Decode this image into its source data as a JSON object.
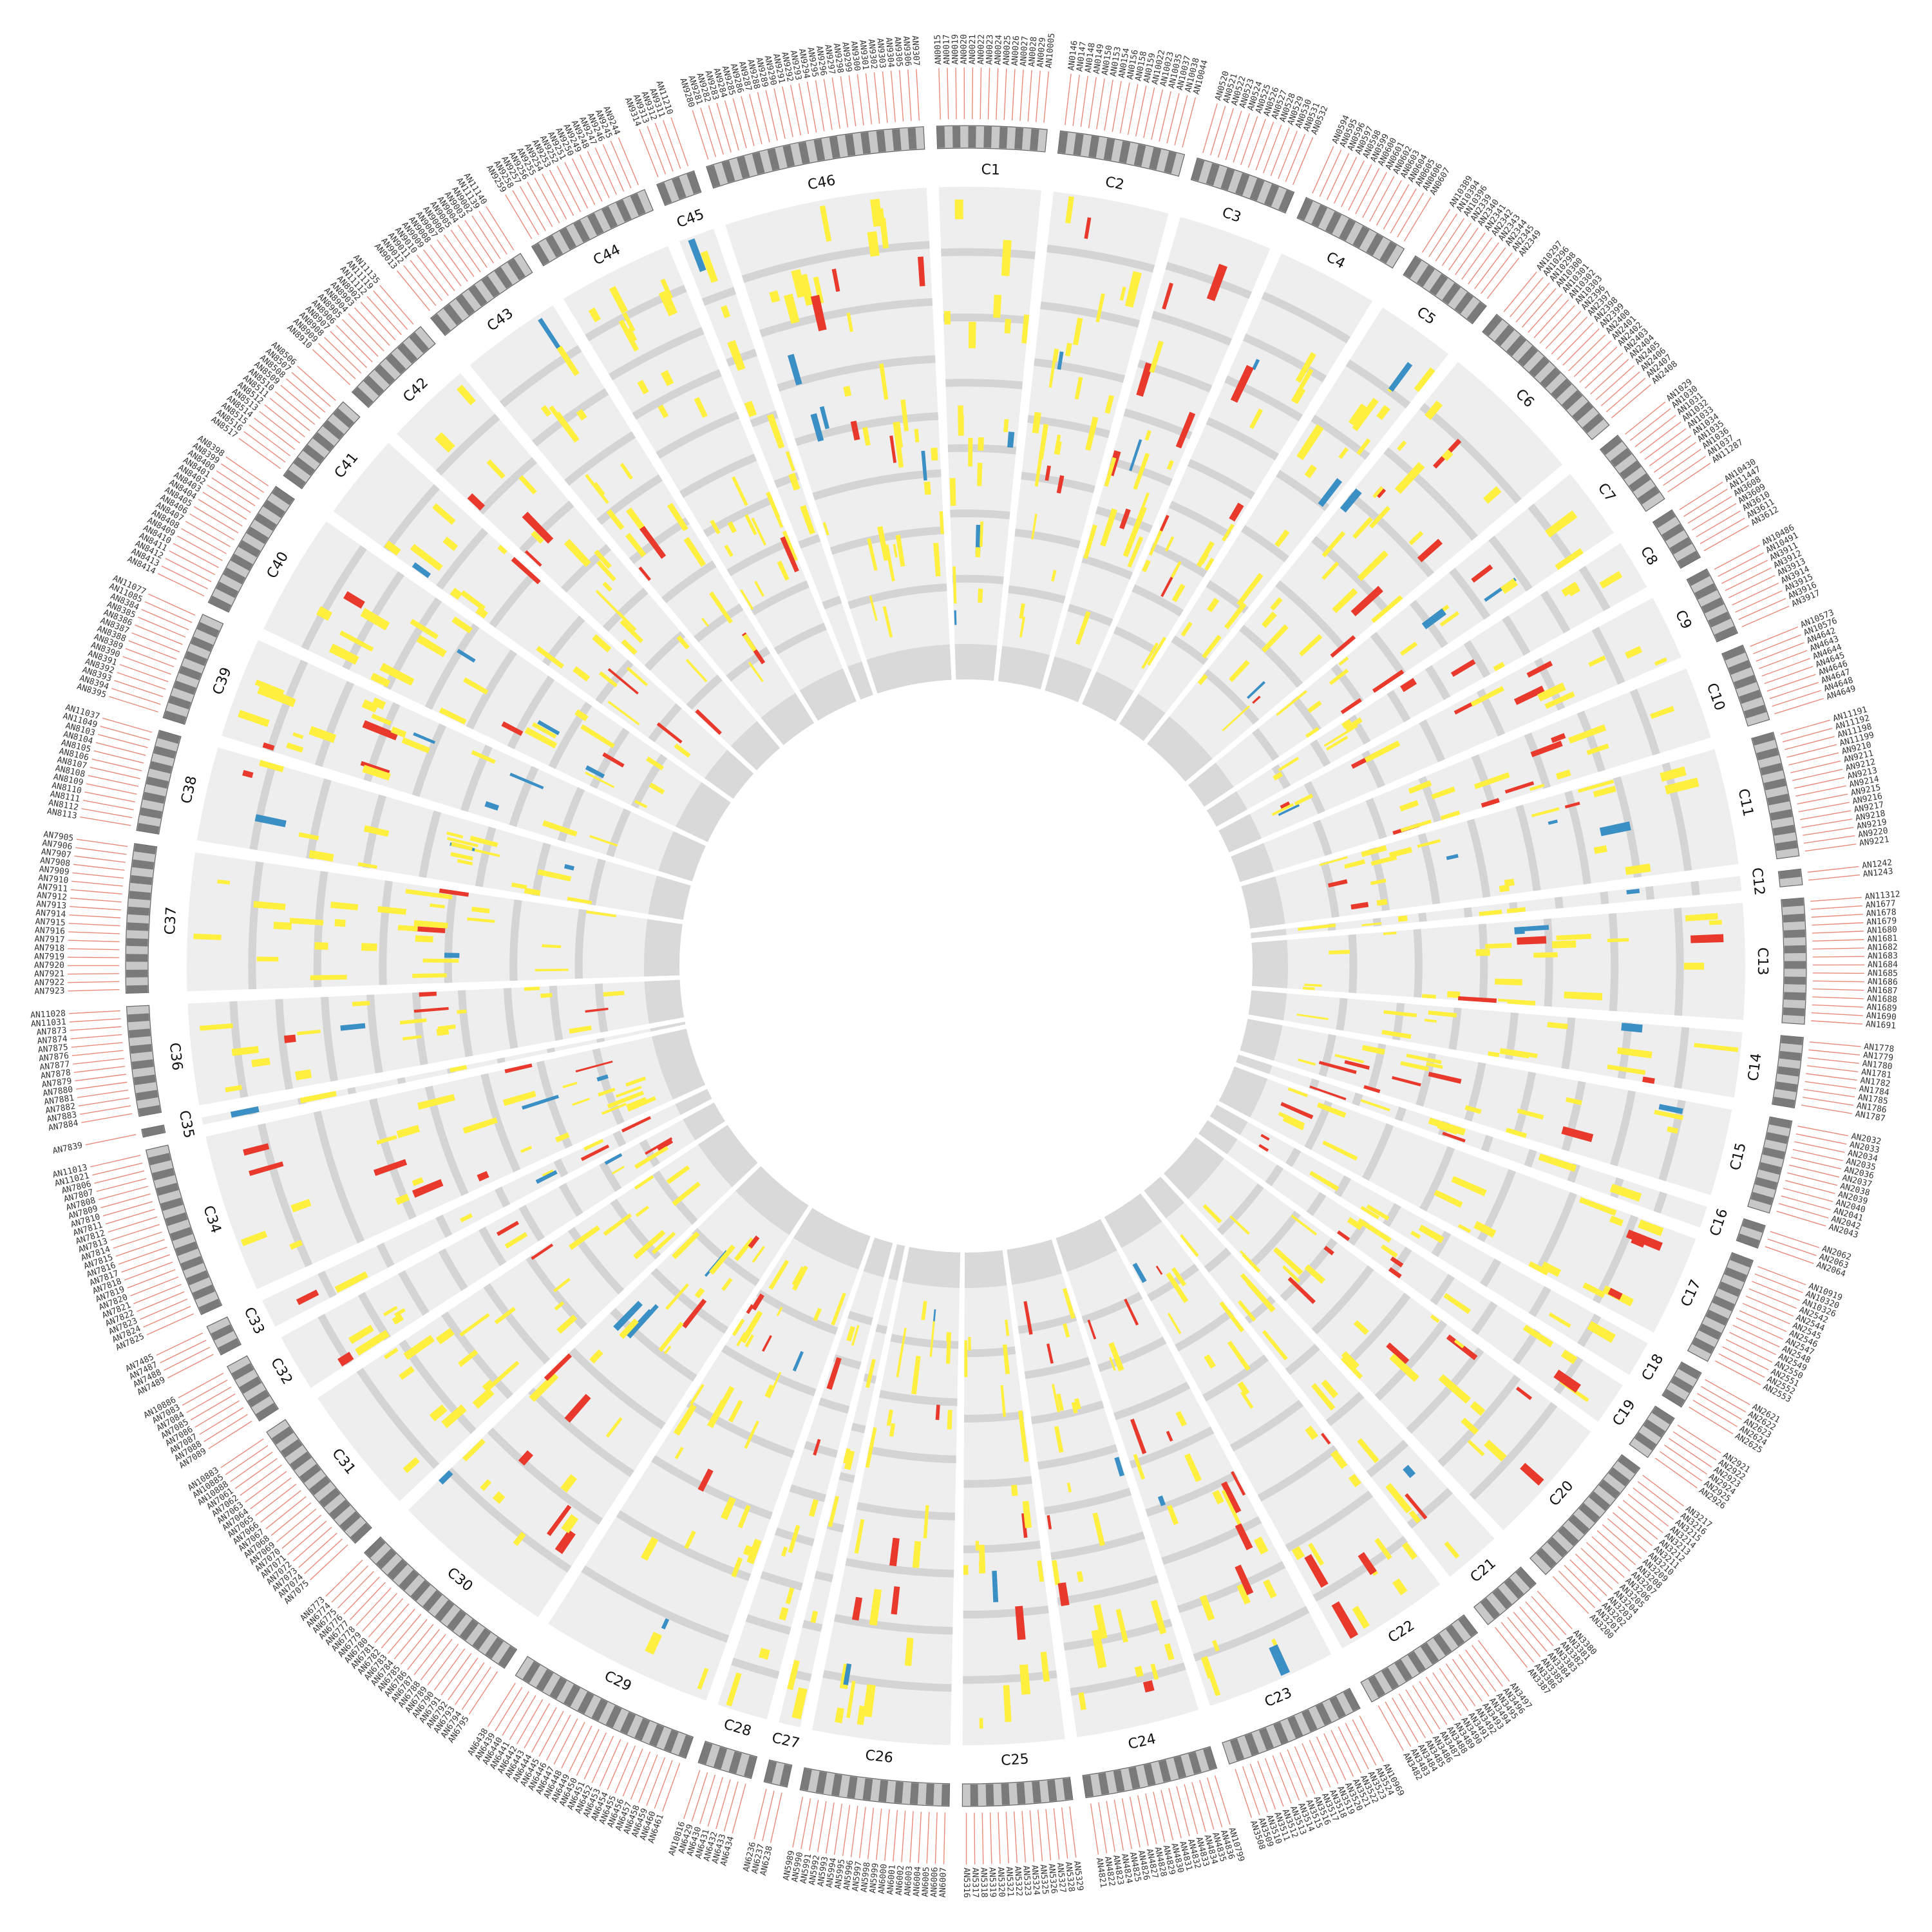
{
  "colors": {
    "background": "#ffffff",
    "sector_fill": "#eeeeee",
    "track_band": "#d4d4d4",
    "inner_block": "#d9d9d9",
    "gene_dark": "#7a7a7a",
    "gene_light": "#c8c8c8",
    "tick": "#e88a7a",
    "yellow": "#ffef3f",
    "red": "#e8392c",
    "blue": "#3a8fc4"
  },
  "clusters": [
    {
      "id": "C1",
      "genes": [
        "AN0015",
        "AN0017",
        "AN0019",
        "AN0020",
        "AN0021",
        "AN0022",
        "AN0023",
        "AN0024",
        "AN0025",
        "AN0026",
        "AN0027",
        "AN0028",
        "AN0029",
        "AN10005"
      ]
    },
    {
      "id": "C2",
      "genes": [
        "AN0146",
        "AN0147",
        "AN0148",
        "AN0149",
        "AN0150",
        "AN0153",
        "AN0154",
        "AN0156",
        "AN0158",
        "AN0159",
        "AN10022",
        "AN10023",
        "AN10035",
        "AN10037",
        "AN10038",
        "AN10044"
      ]
    },
    {
      "id": "C3",
      "genes": [
        "AN0520",
        "AN0521",
        "AN0522",
        "AN0523",
        "AN0524",
        "AN0525",
        "AN0526",
        "AN0527",
        "AN0528",
        "AN0529",
        "AN0530",
        "AN0531",
        "AN0532"
      ]
    },
    {
      "id": "C4",
      "genes": [
        "AN0594",
        "AN0595",
        "AN0596",
        "AN0597",
        "AN0598",
        "AN0599",
        "AN0600",
        "AN0601",
        "AN0602",
        "AN0603",
        "AN0604",
        "AN0605",
        "AN0606",
        "AN0607"
      ]
    },
    {
      "id": "C5",
      "genes": [
        "AN10389",
        "AN10394",
        "AN10396",
        "AN2339",
        "AN2340",
        "AN2341",
        "AN2342",
        "AN2343",
        "AN2344",
        "AN2345",
        "AN2349"
      ]
    },
    {
      "id": "C6",
      "genes": [
        "AN10297",
        "AN10296",
        "AN10298",
        "AN10300",
        "AN10301",
        "AN10302",
        "AN10303",
        "AN2396",
        "AN2397",
        "AN2398",
        "AN2399",
        "AN2400",
        "AN2401",
        "AN2402",
        "AN2403",
        "AN2404",
        "AN2405",
        "AN2406",
        "AN2407",
        "AN2408"
      ]
    },
    {
      "id": "C7",
      "genes": [
        "AN1029",
        "AN1030",
        "AN1031",
        "AN1032",
        "AN1033",
        "AN1034",
        "AN1035",
        "AN1036",
        "AN1037",
        "AN11287"
      ]
    },
    {
      "id": "C8",
      "genes": [
        "AN10430",
        "AN11447",
        "AN3608",
        "AN3609",
        "AN3610",
        "AN3611",
        "AN3612"
      ]
    },
    {
      "id": "C9",
      "genes": [
        "AN10486",
        "AN10491",
        "AN3911",
        "AN3912",
        "AN3913",
        "AN3914",
        "AN3915",
        "AN3916",
        "AN3917"
      ]
    },
    {
      "id": "C10",
      "genes": [
        "AN10573",
        "AN10576",
        "AN4642",
        "AN4643",
        "AN4644",
        "AN4645",
        "AN4646",
        "AN4647",
        "AN4648",
        "AN4649"
      ]
    },
    {
      "id": "C11",
      "genes": [
        "AN11191",
        "AN11192",
        "AN11198",
        "AN11199",
        "AN9210",
        "AN9211",
        "AN9212",
        "AN9213",
        "AN9214",
        "AN9215",
        "AN9216",
        "AN9217",
        "AN9218",
        "AN9219",
        "AN9220",
        "AN9221"
      ]
    },
    {
      "id": "C12",
      "genes": [
        "AN1242",
        "AN1243"
      ]
    },
    {
      "id": "C13",
      "genes": [
        "AN11312",
        "AN1677",
        "AN1678",
        "AN1679",
        "AN1680",
        "AN1681",
        "AN1682",
        "AN1683",
        "AN1684",
        "AN1685",
        "AN1686",
        "AN1687",
        "AN1688",
        "AN1689",
        "AN1690",
        "AN1691"
      ]
    },
    {
      "id": "C14",
      "genes": [
        "AN1778",
        "AN1779",
        "AN1780",
        "AN1781",
        "AN1782",
        "AN1784",
        "AN1785",
        "AN1786",
        "AN1787"
      ]
    },
    {
      "id": "C15",
      "genes": [
        "AN2032",
        "AN2033",
        "AN2034",
        "AN2035",
        "AN2036",
        "AN2037",
        "AN2038",
        "AN2039",
        "AN2040",
        "AN2041",
        "AN2042",
        "AN2043"
      ]
    },
    {
      "id": "C16",
      "genes": [
        "AN2062",
        "AN2063",
        "AN2064"
      ]
    },
    {
      "id": "C17",
      "genes": [
        "AN10919",
        "AN10320",
        "AN10326",
        "AN2542",
        "AN2544",
        "AN2545",
        "AN2546",
        "AN2547",
        "AN2548",
        "AN2549",
        "AN2550",
        "AN2551",
        "AN2552",
        "AN2553"
      ]
    },
    {
      "id": "C18",
      "genes": [
        "AN2621",
        "AN2622",
        "AN2623",
        "AN2624",
        "AN2625"
      ]
    },
    {
      "id": "C19",
      "genes": [
        "AN2921",
        "AN2922",
        "AN2923",
        "AN2924",
        "AN2925",
        "AN2926"
      ]
    },
    {
      "id": "C20",
      "genes": [
        "AN3217",
        "AN3216",
        "AN3215",
        "AN3214",
        "AN3213",
        "AN3212",
        "AN3211",
        "AN3210",
        "AN3209",
        "AN3208",
        "AN3207",
        "AN3206",
        "AN3205",
        "AN3204",
        "AN3203",
        "AN3202",
        "AN3201",
        "AN3200"
      ]
    },
    {
      "id": "C21",
      "genes": [
        "AN3380",
        "AN3381",
        "AN3382",
        "AN3383",
        "AN3384",
        "AN3385",
        "AN3386",
        "AN3387"
      ]
    },
    {
      "id": "C22",
      "genes": [
        "AN3497",
        "AN3496",
        "AN3495",
        "AN3494",
        "AN3493",
        "AN3492",
        "AN3491",
        "AN3490",
        "AN3489",
        "AN3488",
        "AN3487",
        "AN3486",
        "AN3485",
        "AN3484",
        "AN3483",
        "AN3482"
      ]
    },
    {
      "id": "C23",
      "genes": [
        "AN10969",
        "AN3524",
        "AN3523",
        "AN3522",
        "AN3521",
        "AN3520",
        "AN3519",
        "AN3518",
        "AN3517",
        "AN3516",
        "AN3515",
        "AN3514",
        "AN3513",
        "AN3512",
        "AN3511",
        "AN3510",
        "AN3509",
        "AN3508"
      ]
    },
    {
      "id": "C24",
      "genes": [
        "AN10799",
        "AN4836",
        "AN4835",
        "AN4834",
        "AN4833",
        "AN4832",
        "AN4831",
        "AN4830",
        "AN4829",
        "AN4828",
        "AN4827",
        "AN4826",
        "AN4825",
        "AN4824",
        "AN4823",
        "AN4822",
        "AN4821"
      ]
    },
    {
      "id": "C25",
      "genes": [
        "AN5329",
        "AN5328",
        "AN5327",
        "AN5326",
        "AN5325",
        "AN5324",
        "AN5323",
        "AN5322",
        "AN5321",
        "AN5320",
        "AN5319",
        "AN5318",
        "AN5317",
        "AN5316"
      ]
    },
    {
      "id": "C26",
      "genes": [
        "AN6007",
        "AN6006",
        "AN6005",
        "AN6004",
        "AN6003",
        "AN6002",
        "AN6001",
        "AN6000",
        "AN5999",
        "AN5998",
        "AN5997",
        "AN5996",
        "AN5995",
        "AN5994",
        "AN5993",
        "AN5992",
        "AN5991",
        "AN5990",
        "AN5989"
      ]
    },
    {
      "id": "C27",
      "genes": [
        "AN6238",
        "AN6237",
        "AN6236"
      ]
    },
    {
      "id": "C28",
      "genes": [
        "AN6434",
        "AN6433",
        "AN6432",
        "AN6431",
        "AN6430",
        "AN6429",
        "AN10816"
      ]
    },
    {
      "id": "C29",
      "genes": [
        "AN6461",
        "AN6460",
        "AN6459",
        "AN6458",
        "AN6457",
        "AN6456",
        "AN6455",
        "AN6454",
        "AN6453",
        "AN6452",
        "AN6451",
        "AN6450",
        "AN6449",
        "AN6448",
        "AN6447",
        "AN6446",
        "AN6445",
        "AN6444",
        "AN6443",
        "AN6442",
        "AN6441",
        "AN6440",
        "AN6439",
        "AN6438"
      ]
    },
    {
      "id": "C30",
      "genes": [
        "AN6795",
        "AN6794",
        "AN6793",
        "AN6792",
        "AN6791",
        "AN6790",
        "AN6789",
        "AN6788",
        "AN6787",
        "AN6786",
        "AN6785",
        "AN6784",
        "AN6783",
        "AN6782",
        "AN6781",
        "AN6780",
        "AN6779",
        "AN6778",
        "AN6777",
        "AN6776",
        "AN6775",
        "AN6774",
        "AN6773"
      ]
    },
    {
      "id": "C31",
      "genes": [
        "AN7075",
        "AN7074",
        "AN7073",
        "AN7072",
        "AN7071",
        "AN7070",
        "AN7069",
        "AN7068",
        "AN7067",
        "AN7066",
        "AN7065",
        "AN7064",
        "AN7063",
        "AN7062",
        "AN7061",
        "AN10888",
        "AN10885",
        "AN10883"
      ]
    },
    {
      "id": "C32",
      "genes": [
        "AN7089",
        "AN7088",
        "AN7087",
        "AN7086",
        "AN7085",
        "AN7084",
        "AN7083",
        "AN10886"
      ]
    },
    {
      "id": "C33",
      "genes": [
        "AN7489",
        "AN7488",
        "AN7487",
        "AN7485"
      ]
    },
    {
      "id": "C34",
      "genes": [
        "AN7825",
        "AN7824",
        "AN7823",
        "AN7822",
        "AN7821",
        "AN7820",
        "AN7819",
        "AN7818",
        "AN7817",
        "AN7816",
        "AN7815",
        "AN7814",
        "AN7813",
        "AN7812",
        "AN7811",
        "AN7810",
        "AN7809",
        "AN7808",
        "AN7807",
        "AN7806",
        "AN11021",
        "AN11013"
      ]
    },
    {
      "id": "C35",
      "genes": [
        "AN7839"
      ]
    },
    {
      "id": "C36",
      "genes": [
        "AN7884",
        "AN7883",
        "AN7882",
        "AN7881",
        "AN7880",
        "AN7879",
        "AN7878",
        "AN7877",
        "AN7876",
        "AN7875",
        "AN7874",
        "AN7873",
        "AN11031",
        "AN11028"
      ]
    },
    {
      "id": "C37",
      "genes": [
        "AN7923",
        "AN7922",
        "AN7921",
        "AN7920",
        "AN7919",
        "AN7918",
        "AN7917",
        "AN7916",
        "AN7915",
        "AN7914",
        "AN7913",
        "AN7912",
        "AN7911",
        "AN7910",
        "AN7909",
        "AN7908",
        "AN7907",
        "AN7906",
        "AN7905"
      ]
    },
    {
      "id": "C38",
      "genes": [
        "AN8113",
        "AN8112",
        "AN8111",
        "AN8110",
        "AN8109",
        "AN8108",
        "AN8107",
        "AN8106",
        "AN8105",
        "AN8104",
        "AN8103",
        "AN11049",
        "AN11037"
      ]
    },
    {
      "id": "C39",
      "genes": [
        "AN8395",
        "AN8394",
        "AN8393",
        "AN8392",
        "AN8391",
        "AN8390",
        "AN8389",
        "AN8388",
        "AN8387",
        "AN8386",
        "AN8385",
        "AN8384",
        "AN11085",
        "AN11077"
      ]
    },
    {
      "id": "C40",
      "genes": [
        "AN8414",
        "AN8413",
        "AN8412",
        "AN8411",
        "AN8410",
        "AN8409",
        "AN8408",
        "AN8407",
        "AN8406",
        "AN8405",
        "AN8404",
        "AN8403",
        "AN8402",
        "AN8401",
        "AN8400",
        "AN8399",
        "AN8398"
      ]
    },
    {
      "id": "C41",
      "genes": [
        "AN8517",
        "AN8516",
        "AN8515",
        "AN8514",
        "AN8513",
        "AN8512",
        "AN8511",
        "AN8510",
        "AN8509",
        "AN8508",
        "AN8507",
        "AN8506"
      ]
    },
    {
      "id": "C42",
      "genes": [
        "AN8910",
        "AN8909",
        "AN8908",
        "AN8907",
        "AN8906",
        "AN8905",
        "AN8904",
        "AN8903",
        "AN8902",
        "AN11112",
        "AN11119",
        "AN11135"
      ]
    },
    {
      "id": "C43",
      "genes": [
        "AN9013",
        "AN9012",
        "AN9011",
        "AN9010",
        "AN9009",
        "AN9008",
        "AN9007",
        "AN9006",
        "AN9005",
        "AN9004",
        "AN9003",
        "AN9002",
        "AN11139",
        "AN11140"
      ]
    },
    {
      "id": "C44",
      "genes": [
        "AN9259",
        "AN9258",
        "AN9257",
        "AN9256",
        "AN9255",
        "AN9254",
        "AN9253",
        "AN9252",
        "AN9251",
        "AN9250",
        "AN9249",
        "AN9248",
        "AN9247",
        "AN9246",
        "AN9245",
        "AN9244"
      ]
    },
    {
      "id": "C45",
      "genes": [
        "AN9314",
        "AN9313",
        "AN9312",
        "AN9311",
        "AN11210"
      ]
    },
    {
      "id": "C46",
      "genes": [
        "AN9280",
        "AN9281",
        "AN9282",
        "AN9283",
        "AN9284",
        "AN9285",
        "AN9286",
        "AN9287",
        "AN9288",
        "AN9289",
        "AN9290",
        "AN9291",
        "AN9292",
        "AN9293",
        "AN9294",
        "AN9295",
        "AN9296",
        "AN9297",
        "AN9298",
        "AN9299",
        "AN9300",
        "AN9301",
        "AN9302",
        "AN9303",
        "AN9304",
        "AN9305",
        "AN9306",
        "AN9307"
      ]
    }
  ]
}
